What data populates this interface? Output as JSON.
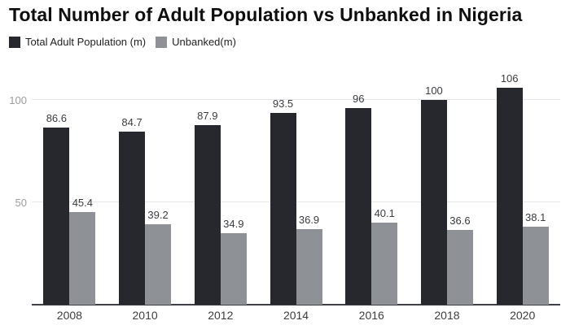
{
  "title": "Total Number of Adult Population vs Unbanked in Nigeria",
  "chart_data": {
    "type": "bar",
    "title": "Total Number of Adult Population vs Unbanked in Nigeria",
    "categories": [
      "2008",
      "2010",
      "2012",
      "2014",
      "2016",
      "2018",
      "2020"
    ],
    "series": [
      {
        "name": "Total Adult Population (m)",
        "color": "#26282d",
        "values": [
          86.6,
          84.7,
          87.9,
          93.5,
          96,
          100,
          106
        ],
        "labels": [
          "86.6",
          "84.7",
          "87.9",
          "93.5",
          "96",
          "100",
          "106"
        ]
      },
      {
        "name": "Unbanked(m)",
        "color": "#8e9196",
        "values": [
          45.4,
          39.2,
          34.9,
          36.9,
          40.1,
          36.6,
          38.1
        ],
        "labels": [
          "45.4",
          "39.2",
          "34.9",
          "36.9",
          "40.1",
          "36.6",
          "38.1"
        ]
      }
    ],
    "y_ticks": [
      50,
      100
    ],
    "ylim": [
      0,
      111
    ],
    "xlabel": "",
    "ylabel": "",
    "grid": true,
    "legend_position": "top-left"
  },
  "colors": {
    "background": "#ffffff",
    "grid": "#e7e7e7",
    "axis": "#3e4045",
    "y_tick_label": "#9c9c9c",
    "value_label": "#3a3c3f",
    "x_tick_label": "#3d3d3d",
    "title": "#0f0f0f"
  }
}
